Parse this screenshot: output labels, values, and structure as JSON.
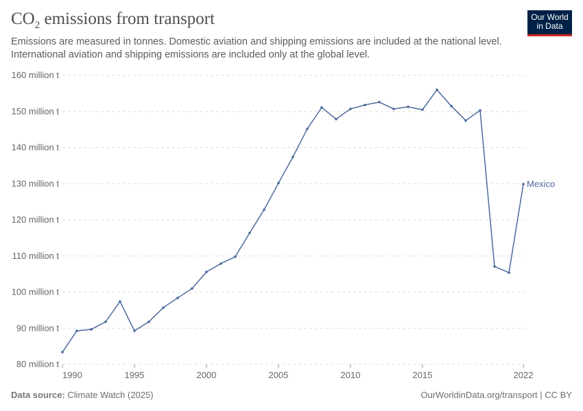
{
  "header": {
    "title_main": "CO",
    "title_sub": "2",
    "title_rest": " emissions from transport",
    "subtitle": "Emissions are measured in tonnes. Domestic aviation and shipping emissions are included at the national level. International aviation and shipping emissions are included only at the global level."
  },
  "logo": {
    "text_line1": "Our World",
    "text_line2": "in Data"
  },
  "footer": {
    "source_label": "Data source:",
    "source_value": "Climate Watch (2025)",
    "right": "OurWorldinData.org/transport | CC BY"
  },
  "colors": {
    "series": "#4c6a9c",
    "logo_bg": "#002147",
    "logo_accent": "#ce261e"
  },
  "chart_data": {
    "type": "line",
    "title": "CO₂ emissions from transport",
    "ylim": [
      80,
      160
    ],
    "xlim": [
      1990,
      2022
    ],
    "grid": "horizontal-dashed",
    "y_ticks": [
      80,
      90,
      100,
      110,
      120,
      130,
      140,
      150,
      160
    ],
    "y_tick_labels": [
      "80 million t",
      "90 million t",
      "100 million t",
      "110 million t",
      "120 million t",
      "130 million t",
      "140 million t",
      "150 million t",
      "160 million t"
    ],
    "x_ticks": [
      1990,
      1995,
      2000,
      2005,
      2010,
      2015,
      2022
    ],
    "x_tick_labels": [
      "1990",
      "1995",
      "2000",
      "2005",
      "2010",
      "2015",
      "2022"
    ],
    "series": [
      {
        "name": "Mexico",
        "x": [
          1990,
          1991,
          1992,
          1993,
          1994,
          1995,
          1996,
          1997,
          1998,
          1999,
          2000,
          2001,
          2002,
          2003,
          2004,
          2005,
          2006,
          2007,
          2008,
          2009,
          2010,
          2011,
          2012,
          2013,
          2014,
          2015,
          2016,
          2017,
          2018,
          2019,
          2020,
          2021,
          2022
        ],
        "values": [
          83.4,
          89.3,
          89.7,
          91.8,
          97.4,
          89.3,
          91.8,
          95.7,
          98.4,
          101.0,
          105.6,
          107.9,
          109.8,
          116.4,
          122.8,
          130.2,
          137.4,
          145.2,
          151.1,
          147.9,
          150.7,
          151.8,
          152.6,
          150.7,
          151.3,
          150.5,
          156.0,
          151.5,
          147.5,
          150.3,
          107.1,
          105.4,
          129.9
        ]
      }
    ]
  }
}
